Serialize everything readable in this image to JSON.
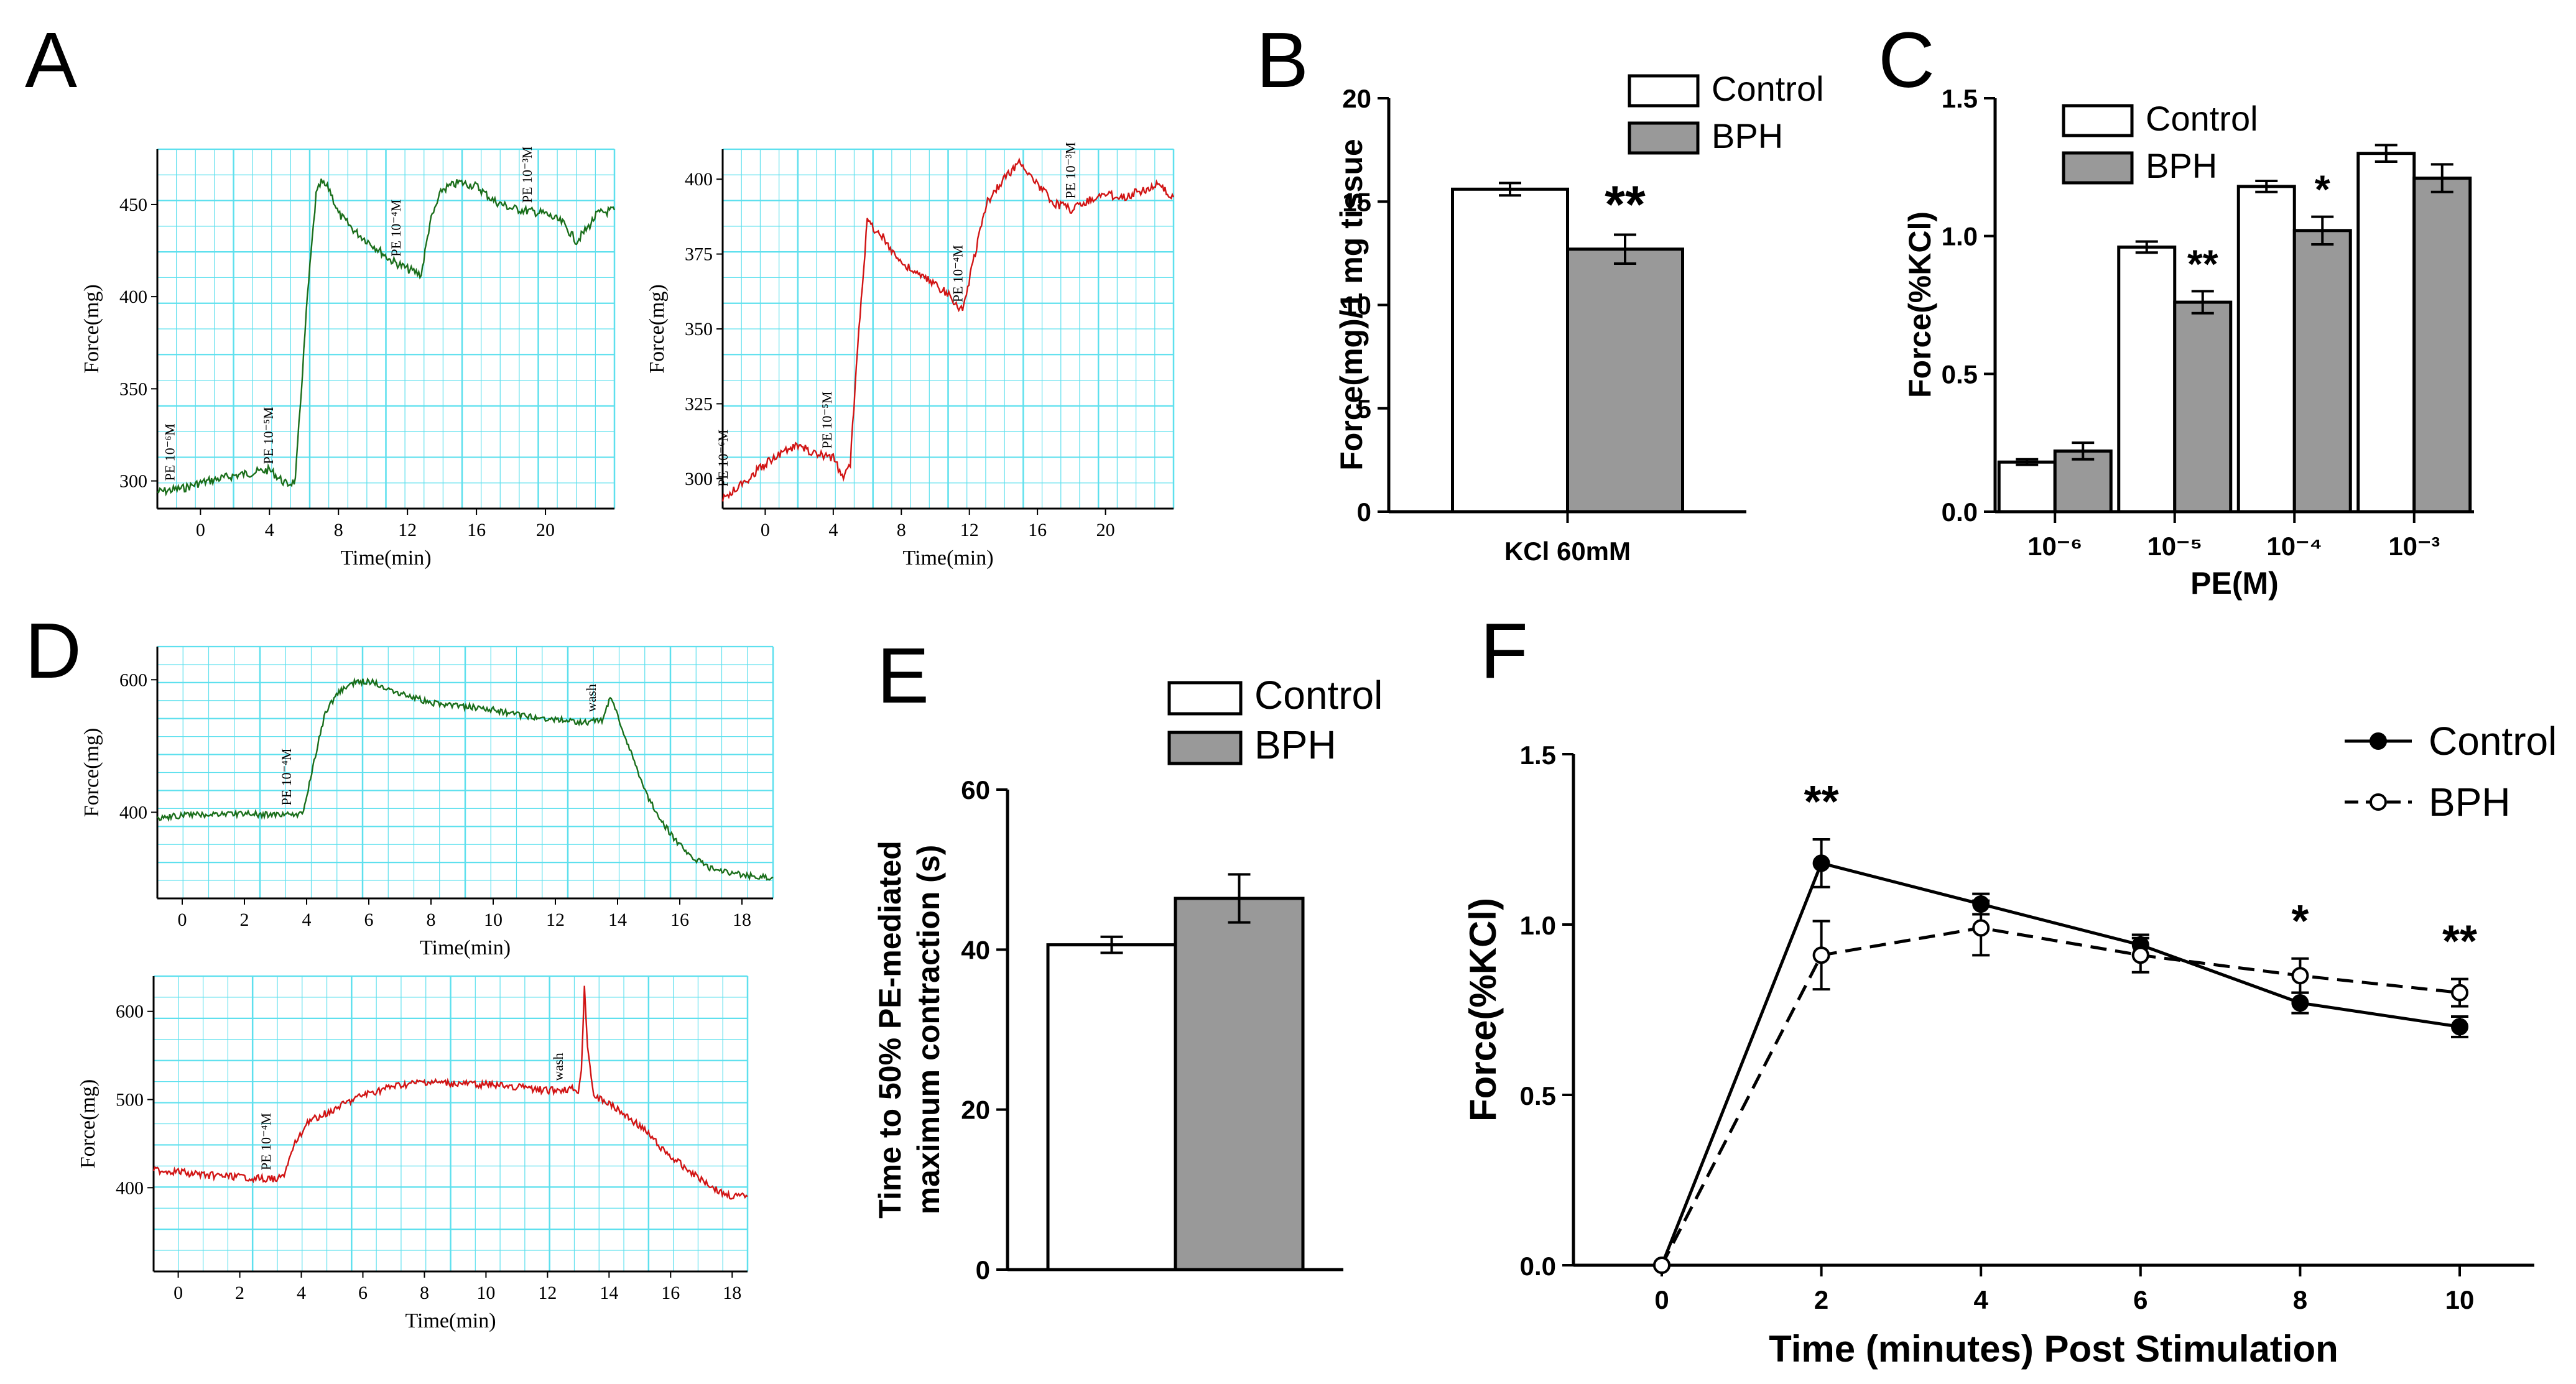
{
  "panel_letters": [
    "A",
    "B",
    "C",
    "D",
    "E",
    "F"
  ],
  "colors": {
    "control_trace": "#1a6e1a",
    "bph_trace": "#d11414",
    "trace_grid": "#5ee0ee",
    "bar_control": "#ffffff",
    "bar_bph": "#999999",
    "axis": "#000000"
  },
  "chart_data": [
    {
      "id": "A-control",
      "type": "line",
      "xlabel": "Time(min)",
      "ylabel": "Force(mg)",
      "xticks": [
        0,
        4,
        8,
        12,
        16,
        20
      ],
      "yticks": [
        300,
        350,
        400,
        450
      ],
      "xlim": [
        -2.5,
        24
      ],
      "ylim": [
        285,
        480
      ],
      "grid": true,
      "annotations": [
        {
          "text": "PE 10⁻⁶M",
          "x": -1.5
        },
        {
          "text": "PE 10⁻⁵M",
          "x": 4.2
        },
        {
          "text": "PE 10⁻⁴M",
          "x": 11.6
        },
        {
          "text": "PE 10⁻³M",
          "x": 19.2
        }
      ],
      "trace": [
        [
          -2.5,
          294
        ],
        [
          -1,
          296
        ],
        [
          0,
          299
        ],
        [
          2,
          303
        ],
        [
          4,
          306
        ],
        [
          5,
          298
        ],
        [
          5.5,
          300
        ],
        [
          6.2,
          400
        ],
        [
          6.7,
          455
        ],
        [
          7,
          462
        ],
        [
          7.5,
          458
        ],
        [
          8,
          445
        ],
        [
          9,
          435
        ],
        [
          10,
          428
        ],
        [
          11,
          420
        ],
        [
          12,
          415
        ],
        [
          12.8,
          412
        ],
        [
          13.3,
          440
        ],
        [
          14,
          458
        ],
        [
          15,
          462
        ],
        [
          16,
          460
        ],
        [
          17,
          452
        ],
        [
          18,
          448
        ],
        [
          20,
          445
        ],
        [
          21,
          440
        ],
        [
          21.8,
          430
        ],
        [
          22.5,
          438
        ],
        [
          23,
          445
        ],
        [
          24,
          447
        ]
      ]
    },
    {
      "id": "A-bph",
      "type": "line",
      "xlabel": "Time(min)",
      "ylabel": "Force(mg)",
      "xticks": [
        0,
        4,
        8,
        12,
        16,
        20
      ],
      "yticks": [
        300,
        325,
        350,
        375,
        400
      ],
      "xlim": [
        -2.5,
        24
      ],
      "ylim": [
        290,
        410
      ],
      "grid": true,
      "annotations": [
        {
          "text": "PE 10⁻⁶M",
          "x": -2.2
        },
        {
          "text": "PE 10⁻⁵M",
          "x": 3.9
        },
        {
          "text": "PE 10⁻⁴M",
          "x": 11.6
        },
        {
          "text": "PE 10⁻³M",
          "x": 18.2
        }
      ],
      "trace": [
        [
          -2.5,
          293
        ],
        [
          -1,
          300
        ],
        [
          0,
          305
        ],
        [
          1,
          309
        ],
        [
          2,
          311
        ],
        [
          3,
          308
        ],
        [
          4,
          307
        ],
        [
          4.6,
          300
        ],
        [
          5,
          305
        ],
        [
          5.5,
          350
        ],
        [
          6,
          386
        ],
        [
          7,
          380
        ],
        [
          8,
          372
        ],
        [
          9,
          368
        ],
        [
          10,
          365
        ],
        [
          11,
          360
        ],
        [
          11.6,
          356
        ],
        [
          12.2,
          372
        ],
        [
          13,
          392
        ],
        [
          14,
          400
        ],
        [
          15,
          406
        ],
        [
          16,
          398
        ],
        [
          17,
          392
        ],
        [
          18,
          390
        ],
        [
          19,
          393
        ],
        [
          20,
          395
        ],
        [
          21,
          394
        ],
        [
          22,
          396
        ],
        [
          23,
          398
        ],
        [
          24,
          394
        ]
      ]
    },
    {
      "id": "B",
      "type": "bar",
      "categories": [
        "KCl 60mM"
      ],
      "series": [
        {
          "name": "Control",
          "values": [
            15.6
          ],
          "errors": [
            0.3
          ]
        },
        {
          "name": "BPH",
          "values": [
            12.7
          ],
          "errors": [
            0.7
          ]
        }
      ],
      "significance": [
        "**"
      ],
      "ylabel": "Force(mg)/1 mg tissue",
      "yticks": [
        0,
        5,
        10,
        15,
        20
      ],
      "ylim": [
        0,
        20
      ],
      "legend": "top-right"
    },
    {
      "id": "C",
      "type": "bar",
      "categories": [
        "10⁻⁶",
        "10⁻⁵",
        "10⁻⁴",
        "10⁻³"
      ],
      "series": [
        {
          "name": "Control",
          "values": [
            0.18,
            0.96,
            1.18,
            1.3
          ],
          "errors": [
            0.01,
            0.02,
            0.02,
            0.03
          ]
        },
        {
          "name": "BPH",
          "values": [
            0.22,
            0.76,
            1.02,
            1.21
          ],
          "errors": [
            0.03,
            0.04,
            0.05,
            0.05
          ]
        }
      ],
      "significance": [
        "",
        "**",
        "*",
        ""
      ],
      "xlabel": "PE(M)",
      "ylabel": "Force(%KCl)",
      "yticks": [
        0.0,
        0.5,
        1.0,
        1.5
      ],
      "ylim": [
        0,
        1.5
      ],
      "legend": "top-left"
    },
    {
      "id": "D-control",
      "type": "line",
      "xlabel": "Time(min)",
      "ylabel": "Force(mg)",
      "xticks": [
        0,
        2,
        4,
        6,
        8,
        10,
        12,
        14,
        16,
        18
      ],
      "yticks": [
        400,
        600
      ],
      "xlim": [
        -0.8,
        19
      ],
      "ylim": [
        270,
        650
      ],
      "grid": true,
      "annotations": [
        {
          "text": "PE 10⁻⁴M",
          "x": 3.5
        },
        {
          "text": "wash",
          "x": 13.3
        }
      ],
      "trace": [
        [
          -0.8,
          392
        ],
        [
          0,
          395
        ],
        [
          1,
          397
        ],
        [
          2,
          398
        ],
        [
          3,
          396
        ],
        [
          3.9,
          398
        ],
        [
          4.2,
          470
        ],
        [
          4.6,
          550
        ],
        [
          5,
          580
        ],
        [
          5.5,
          595
        ],
        [
          6,
          598
        ],
        [
          7,
          580
        ],
        [
          8,
          565
        ],
        [
          9,
          560
        ],
        [
          10,
          555
        ],
        [
          11,
          545
        ],
        [
          12,
          540
        ],
        [
          13,
          535
        ],
        [
          13.5,
          540
        ],
        [
          13.8,
          575
        ],
        [
          14,
          545
        ],
        [
          14.5,
          480
        ],
        [
          15,
          420
        ],
        [
          15.5,
          380
        ],
        [
          16,
          350
        ],
        [
          16.5,
          330
        ],
        [
          17,
          315
        ],
        [
          18,
          305
        ],
        [
          19,
          302
        ]
      ]
    },
    {
      "id": "D-bph",
      "type": "line",
      "xlabel": "Time(min)",
      "ylabel": "Force(mg)",
      "xticks": [
        0,
        2,
        4,
        6,
        8,
        10,
        12,
        14,
        16,
        18
      ],
      "yticks": [
        400,
        500,
        600
      ],
      "xlim": [
        -0.8,
        18.5
      ],
      "ylim": [
        305,
        640
      ],
      "grid": true,
      "annotations": [
        {
          "text": "PE 10⁻⁴M",
          "x": 3.0
        },
        {
          "text": "wash",
          "x": 12.5
        }
      ],
      "trace": [
        [
          -0.8,
          420
        ],
        [
          0,
          418
        ],
        [
          1,
          414
        ],
        [
          2,
          412
        ],
        [
          3,
          410
        ],
        [
          3.4,
          412
        ],
        [
          3.8,
          450
        ],
        [
          4.2,
          475
        ],
        [
          5,
          488
        ],
        [
          6,
          505
        ],
        [
          7,
          515
        ],
        [
          8,
          520
        ],
        [
          9,
          518
        ],
        [
          10,
          517
        ],
        [
          11,
          515
        ],
        [
          12,
          510
        ],
        [
          12.8,
          512
        ],
        [
          13,
          510
        ],
        [
          13.1,
          530
        ],
        [
          13.2,
          632
        ],
        [
          13.3,
          560
        ],
        [
          13.5,
          505
        ],
        [
          14,
          495
        ],
        [
          15,
          470
        ],
        [
          16,
          435
        ],
        [
          17,
          410
        ],
        [
          17.6,
          395
        ],
        [
          18,
          390
        ],
        [
          18.5,
          390
        ]
      ]
    },
    {
      "id": "E",
      "type": "bar",
      "categories": [
        ""
      ],
      "series": [
        {
          "name": "Control",
          "values": [
            40.6
          ],
          "errors": [
            1.0
          ]
        },
        {
          "name": "BPH",
          "values": [
            46.4
          ],
          "errors": [
            3.0
          ]
        }
      ],
      "ylabel_lines": [
        "Time to 50% PE-mediated",
        "maximum contraction (s)"
      ],
      "yticks": [
        0,
        20,
        40,
        60
      ],
      "ylim": [
        0,
        60
      ],
      "legend": "top"
    },
    {
      "id": "F",
      "type": "line",
      "x": [
        0,
        2,
        4,
        6,
        8,
        10
      ],
      "series": [
        {
          "name": "Control",
          "values": [
            0.0,
            1.18,
            1.06,
            0.94,
            0.77,
            0.7
          ],
          "errors": [
            0,
            0.07,
            0.03,
            0.03,
            0.03,
            0.03
          ],
          "style": "solid",
          "marker": "filled-circle"
        },
        {
          "name": "BPH",
          "values": [
            0.0,
            0.91,
            0.99,
            0.91,
            0.85,
            0.8
          ],
          "errors": [
            0,
            0.1,
            0.08,
            0.05,
            0.05,
            0.04
          ],
          "style": "dashed",
          "marker": "open-circle"
        }
      ],
      "significance": [
        "",
        "**",
        "",
        "",
        "*",
        "**"
      ],
      "xlabel": "Time (minutes) Post Stimulation",
      "ylabel": "Force(%KCl)",
      "yticks": [
        0.0,
        0.5,
        1.0,
        1.5
      ],
      "ylim": [
        0,
        1.5
      ],
      "legend": "top-right"
    }
  ]
}
